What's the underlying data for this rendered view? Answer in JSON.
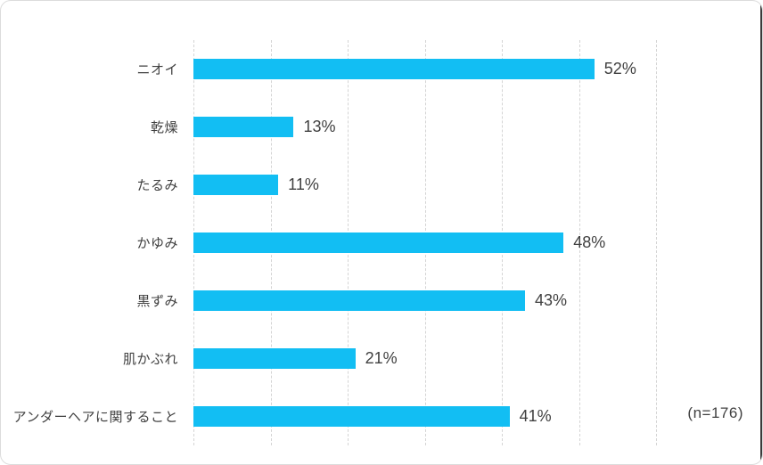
{
  "chart_data": {
    "type": "bar",
    "orientation": "horizontal",
    "title": "",
    "categories": [
      "ニオイ",
      "乾燥",
      "たるみ",
      "かゆみ",
      "黒ずみ",
      "肌かぶれ",
      "アンダーヘアに関すること"
    ],
    "values": [
      52,
      13,
      11,
      48,
      43,
      21,
      41
    ],
    "value_labels": [
      "52%",
      "13%",
      "11%",
      "48%",
      "43%",
      "21%",
      "41%"
    ],
    "xlabel": "",
    "ylabel": "",
    "axis": {
      "min": 0,
      "max": 60,
      "step": 10
    },
    "grid": "vertical-dashed",
    "legend": null,
    "annotation": "(n=176)",
    "colors": {
      "bar": "#12bef3",
      "grid": "#d4d4d4",
      "text": "#404040",
      "frame_border": "#dcdcdc",
      "right_edge": "#3a3a3a"
    }
  }
}
